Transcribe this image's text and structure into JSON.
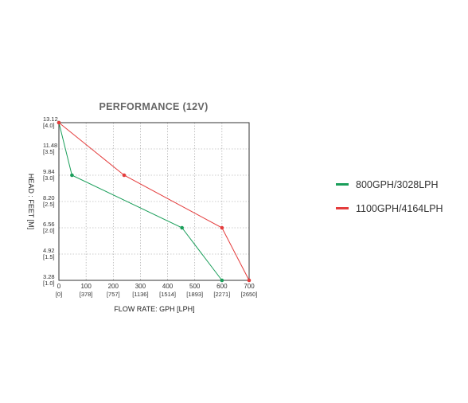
{
  "chart_data": {
    "type": "line",
    "title": "PERFORMANCE (12V)",
    "xlabel": "FLOW RATE: GPH [LPH]",
    "ylabel": "HEAD : FEET [M]",
    "xlim": [
      0,
      700
    ],
    "ylim": [
      3.28,
      13.12
    ],
    "grid": true,
    "legend_position": "right",
    "x_ticks": [
      {
        "value": 0,
        "label": "0",
        "sub": "[0]"
      },
      {
        "value": 100,
        "label": "100",
        "sub": "[378]"
      },
      {
        "value": 200,
        "label": "200",
        "sub": "[757]"
      },
      {
        "value": 300,
        "label": "300",
        "sub": "[1136]"
      },
      {
        "value": 400,
        "label": "400",
        "sub": "[1514]"
      },
      {
        "value": 500,
        "label": "500",
        "sub": "[1893]"
      },
      {
        "value": 600,
        "label": "600",
        "sub": "[2271]"
      },
      {
        "value": 700,
        "label": "700",
        "sub": "[2650]"
      }
    ],
    "y_ticks": [
      {
        "value": 13.12,
        "label": "13.12",
        "sub": "[4.0]"
      },
      {
        "value": 11.48,
        "label": "11.48",
        "sub": "[3.5]"
      },
      {
        "value": 9.84,
        "label": "9.84",
        "sub": "[3.0]"
      },
      {
        "value": 8.2,
        "label": "8.20",
        "sub": "[2.5]"
      },
      {
        "value": 6.56,
        "label": "6.56",
        "sub": "[2.0]"
      },
      {
        "value": 4.92,
        "label": "4.92",
        "sub": "[1.5]"
      },
      {
        "value": 3.28,
        "label": "3.28",
        "sub": "[1.0]"
      }
    ],
    "series": [
      {
        "name": "800GPH/3028LPH",
        "color": "#1a9e5a",
        "points": [
          [
            0,
            13.12
          ],
          [
            48,
            9.84
          ],
          [
            453,
            6.56
          ],
          [
            600,
            3.28
          ]
        ]
      },
      {
        "name": "1100GPH/4164LPH",
        "color": "#e43c3c",
        "points": [
          [
            0,
            13.12
          ],
          [
            240,
            9.84
          ],
          [
            600,
            6.56
          ],
          [
            700,
            3.28
          ]
        ]
      }
    ]
  }
}
